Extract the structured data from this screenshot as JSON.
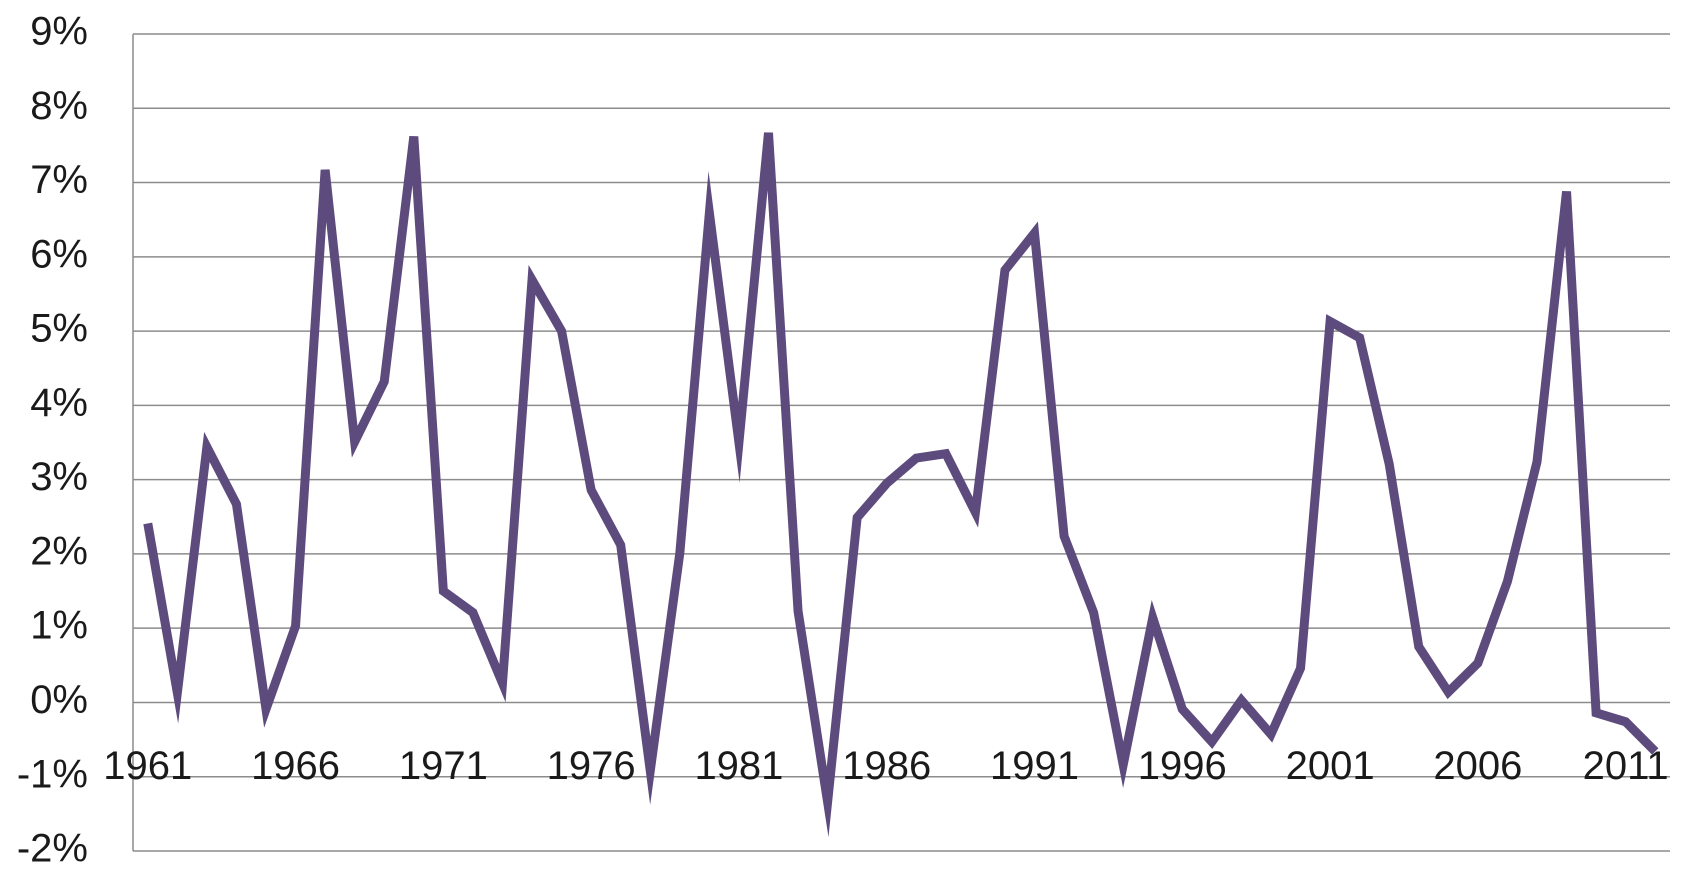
{
  "chart_data": {
    "type": "line",
    "x": [
      1961,
      1962,
      1963,
      1964,
      1965,
      1966,
      1967,
      1968,
      1969,
      1970,
      1971,
      1972,
      1973,
      1974,
      1975,
      1976,
      1977,
      1978,
      1979,
      1980,
      1981,
      1982,
      1983,
      1984,
      1985,
      1986,
      1987,
      1988,
      1989,
      1990,
      1991,
      1992,
      1993,
      1994,
      1995,
      1996,
      1997,
      1998,
      1999,
      2000,
      2001,
      2002,
      2003,
      2004,
      2005,
      2006,
      2007,
      2008,
      2009,
      2010,
      2011,
      2012
    ],
    "values": [
      2.41,
      0.13,
      3.44,
      2.67,
      -0.09,
      1.03,
      7.17,
      3.51,
      4.32,
      7.62,
      1.5,
      1.21,
      0.26,
      5.69,
      5.0,
      2.86,
      2.12,
      -0.92,
      2.01,
      6.59,
      3.5,
      7.67,
      1.23,
      -1.34,
      2.49,
      2.95,
      3.29,
      3.35,
      2.56,
      5.82,
      6.32,
      2.24,
      1.21,
      -0.84,
      1.14,
      -0.09,
      -0.53,
      0.03,
      -0.43,
      0.46,
      5.13,
      4.91,
      3.21,
      0.75,
      0.14,
      0.53,
      1.63,
      3.24,
      6.88,
      -0.14,
      -0.26,
      -0.66
    ],
    "color": "#5e4b7e",
    "xlim": [
      1960.5,
      2012.5
    ],
    "xticks": [
      1961,
      1966,
      1971,
      1976,
      1981,
      1986,
      1991,
      1996,
      2001,
      2006,
      2011
    ],
    "ylim": [
      -2,
      9
    ],
    "yticks": [
      {
        "value": -2,
        "label": "-2%"
      },
      {
        "value": -1,
        "label": "-1%"
      },
      {
        "value": 0,
        "label": "0%"
      },
      {
        "value": 1,
        "label": "1%"
      },
      {
        "value": 2,
        "label": "2%"
      },
      {
        "value": 3,
        "label": "3%"
      },
      {
        "value": 4,
        "label": "4%"
      },
      {
        "value": 5,
        "label": "5%"
      },
      {
        "value": 6,
        "label": "6%"
      },
      {
        "value": 7,
        "label": "7%"
      },
      {
        "value": 8,
        "label": "8%"
      },
      {
        "value": 9,
        "label": "9%"
      }
    ],
    "grid": true
  }
}
